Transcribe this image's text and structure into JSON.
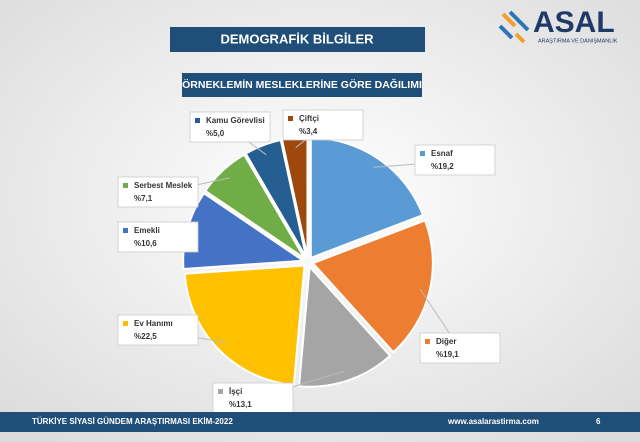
{
  "header": {
    "title": "DEMOGRAFİK BİLGİLER"
  },
  "logo": {
    "name": "ASAL",
    "subtitle": "ARAŞTIRMA VE DANIŞMANLIK"
  },
  "chart_data": {
    "type": "pie",
    "title": "ÖRNEKLEMİN MESLEKLERİNE GÖRE DAĞILIMI",
    "categories": [
      "Esnaf",
      "Diğer",
      "İşçi",
      "Ev Hanımı",
      "Emekli",
      "Serbest Meslek",
      "Kamu Görevlisi",
      "Çiftçi"
    ],
    "values": [
      19.2,
      19.1,
      13.1,
      22.5,
      10.6,
      7.1,
      5.0,
      3.4
    ],
    "value_labels": [
      "%19,2",
      "%19,1",
      "%13,1",
      "%22,5",
      "%10,6",
      "%7,1",
      "%5,0",
      "%3,4"
    ],
    "colors": [
      "#5b9bd5",
      "#ed7d31",
      "#a5a5a5",
      "#ffc000",
      "#4472c4",
      "#70ad47",
      "#255e91",
      "#9e480e"
    ]
  },
  "footer": {
    "left": "TÜRKİYE SİYASİ GÜNDEM ARAŞTIRMASI EKİM-2022",
    "url": "www.asalarastirma.com",
    "page": "6"
  }
}
